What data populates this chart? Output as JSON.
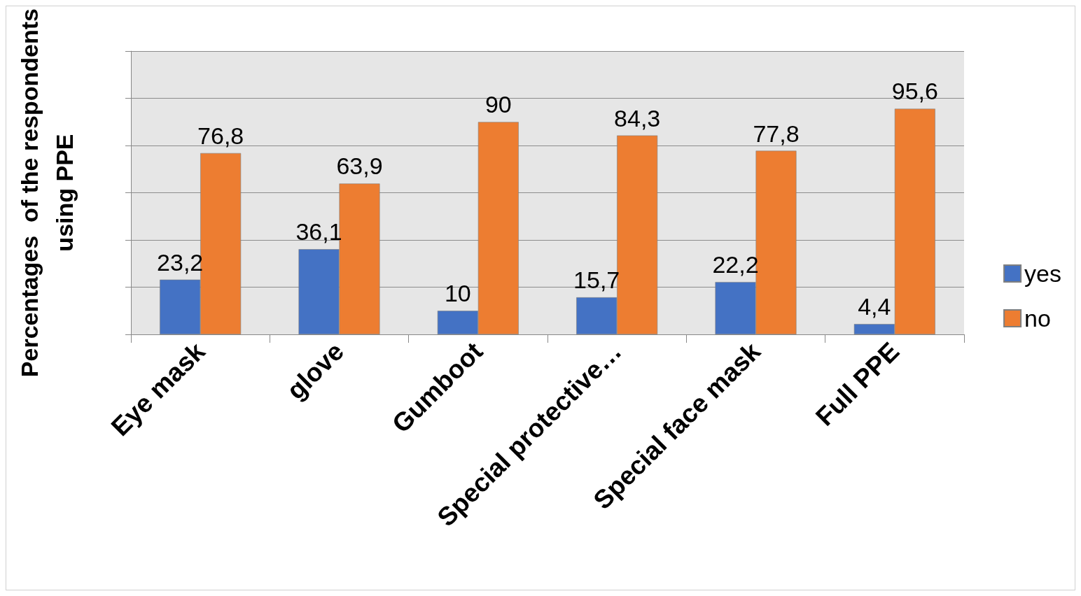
{
  "chart_data": {
    "type": "bar",
    "ylabel": "Percentages  of the respondents\nusing PPE",
    "categories": [
      "Eye mask",
      "glove",
      "Gumboot",
      "Special protective…",
      "Special face mask",
      "Full PPE"
    ],
    "series": [
      {
        "name": "yes",
        "color": "#4472c4",
        "values": [
          23.2,
          36.1,
          10,
          15.7,
          22.2,
          4.4
        ],
        "value_labels": [
          "23,2",
          "36,1",
          "10",
          "15,7",
          "22,2",
          "4,4"
        ]
      },
      {
        "name": "no",
        "color": "#ed7d31",
        "values": [
          76.8,
          63.9,
          90,
          84.3,
          77.8,
          95.6
        ],
        "value_labels": [
          "76,8",
          "63,9",
          "90",
          "84,3",
          "77,8",
          "95,6"
        ]
      }
    ],
    "ylim": [
      0,
      120
    ],
    "yticks": [
      0,
      {
        "value": 20,
        "label": null
      },
      {
        "value": 40,
        "label": null
      },
      {
        "value": 60,
        "label": null
      },
      {
        "value": 80,
        "label": null
      },
      {
        "value": 100,
        "label": null
      },
      {
        "value": 120,
        "label": null
      }
    ],
    "grid": "y",
    "legend": "right",
    "tick_labels": "x"
  }
}
